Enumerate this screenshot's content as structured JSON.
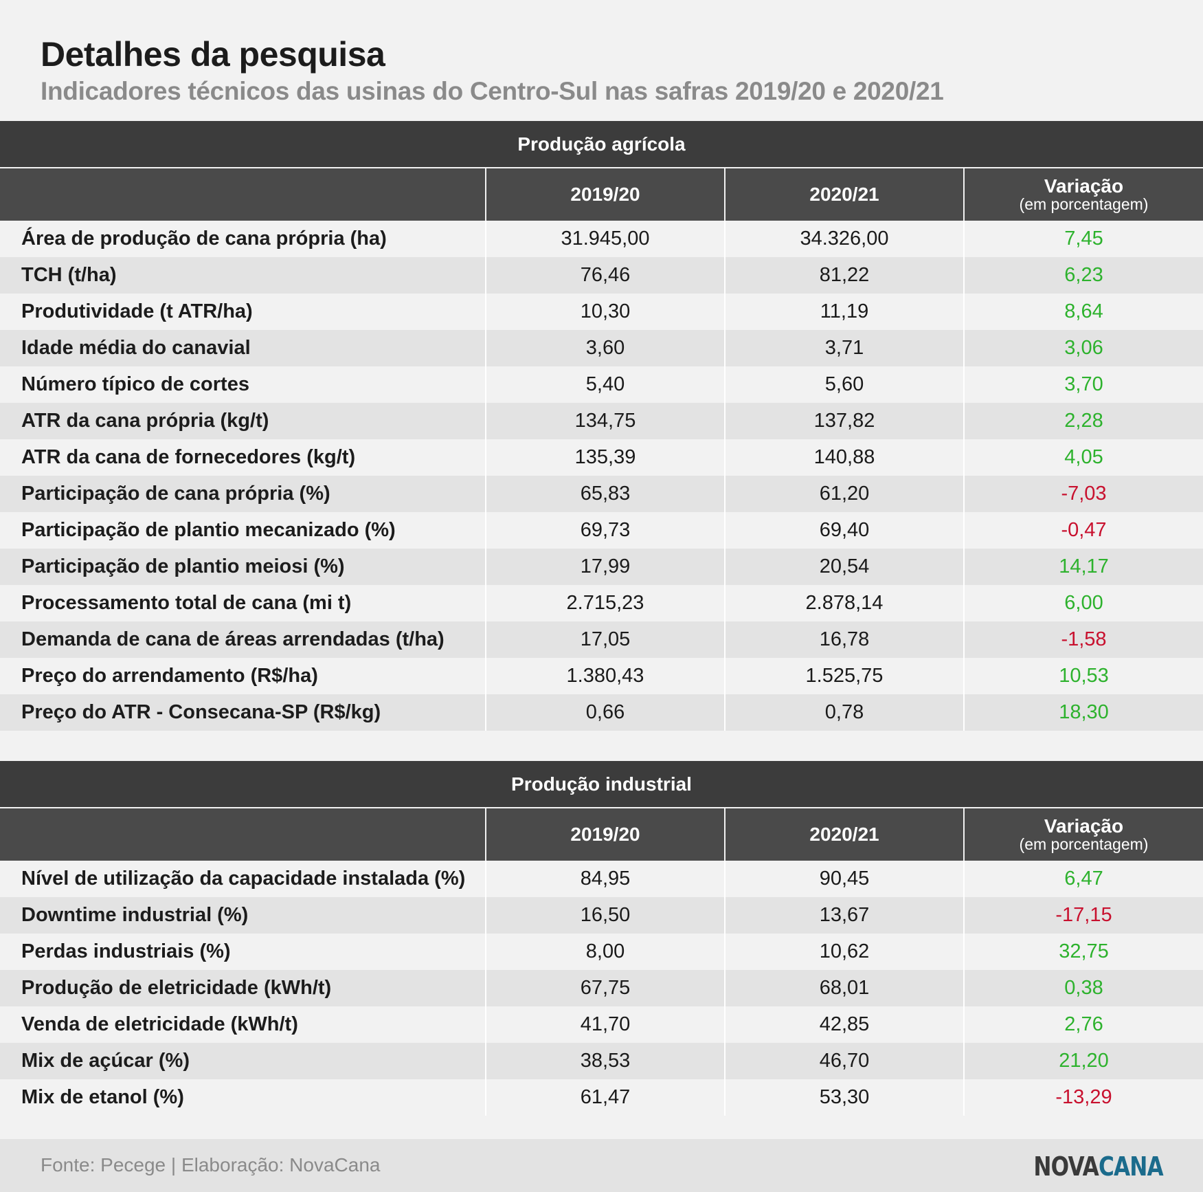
{
  "header": {
    "title": "Detalhes da pesquisa",
    "subtitle": "Indicadores técnicos das usinas do Centro-Sul nas safras 2019/20 e 2020/21"
  },
  "colors": {
    "positive": "#2db22d",
    "negative": "#c8102e",
    "header_bg": "#3c3c3c"
  },
  "chart_data": [
    {
      "type": "table",
      "title": "Produção agrícola",
      "columns": [
        "",
        "2019/20",
        "2020/21",
        "Variação",
        "(em porcentagem)"
      ],
      "rows": [
        {
          "label": "Área de produção de cana própria (ha)",
          "a": "31.945,00",
          "b": "34.326,00",
          "v": "7,45"
        },
        {
          "label": "TCH (t/ha)",
          "a": "76,46",
          "b": "81,22",
          "v": "6,23"
        },
        {
          "label": "Produtividade (t ATR/ha)",
          "a": "10,30",
          "b": "11,19",
          "v": "8,64"
        },
        {
          "label": "Idade média do canavial",
          "a": "3,60",
          "b": "3,71",
          "v": "3,06"
        },
        {
          "label": "Número típico de cortes",
          "a": "5,40",
          "b": "5,60",
          "v": "3,70"
        },
        {
          "label": "ATR da cana própria (kg/t)",
          "a": "134,75",
          "b": "137,82",
          "v": "2,28"
        },
        {
          "label": "ATR da cana de fornecedores (kg/t)",
          "a": "135,39",
          "b": "140,88",
          "v": "4,05"
        },
        {
          "label": "Participação de cana própria (%)",
          "a": "65,83",
          "b": "61,20",
          "v": "-7,03"
        },
        {
          "label": "Participação de plantio mecanizado (%)",
          "a": "69,73",
          "b": "69,40",
          "v": "-0,47"
        },
        {
          "label": "Participação de plantio meiosi (%)",
          "a": "17,99",
          "b": "20,54",
          "v": "14,17"
        },
        {
          "label": "Processamento total de cana (mi t)",
          "a": "2.715,23",
          "b": "2.878,14",
          "v": "6,00"
        },
        {
          "label": "Demanda de cana de áreas arrendadas (t/ha)",
          "a": "17,05",
          "b": "16,78",
          "v": "-1,58"
        },
        {
          "label": "Preço do arrendamento (R$/ha)",
          "a": "1.380,43",
          "b": "1.525,75",
          "v": "10,53"
        },
        {
          "label": "Preço do ATR - Consecana-SP (R$/kg)",
          "a": "0,66",
          "b": "0,78",
          "v": "18,30"
        }
      ]
    },
    {
      "type": "table",
      "title": "Produção industrial",
      "columns": [
        "",
        "2019/20",
        "2020/21",
        "Variação",
        "(em porcentagem)"
      ],
      "rows": [
        {
          "label": "Nível de utilização da capacidade instalada (%)",
          "a": "84,95",
          "b": "90,45",
          "v": "6,47"
        },
        {
          "label": "Downtime industrial (%)",
          "a": "16,50",
          "b": "13,67",
          "v": "-17,15"
        },
        {
          "label": "Perdas industriais (%)",
          "a": "8,00",
          "b": "10,62",
          "v": "32,75"
        },
        {
          "label": "Produção de eletricidade (kWh/t)",
          "a": "67,75",
          "b": "68,01",
          "v": "0,38"
        },
        {
          "label": "Venda de eletricidade (kWh/t)",
          "a": "41,70",
          "b": "42,85",
          "v": "2,76"
        },
        {
          "label": "Mix de açúcar (%)",
          "a": "38,53",
          "b": "46,70",
          "v": "21,20"
        },
        {
          "label": "Mix de etanol (%)",
          "a": "61,47",
          "b": "53,30",
          "v": "-13,29"
        }
      ]
    }
  ],
  "footer": {
    "source": "Fonte: Pecege | Elaboração: NovaCana",
    "logo_part1": "NOVA",
    "logo_part2": "CANA"
  }
}
